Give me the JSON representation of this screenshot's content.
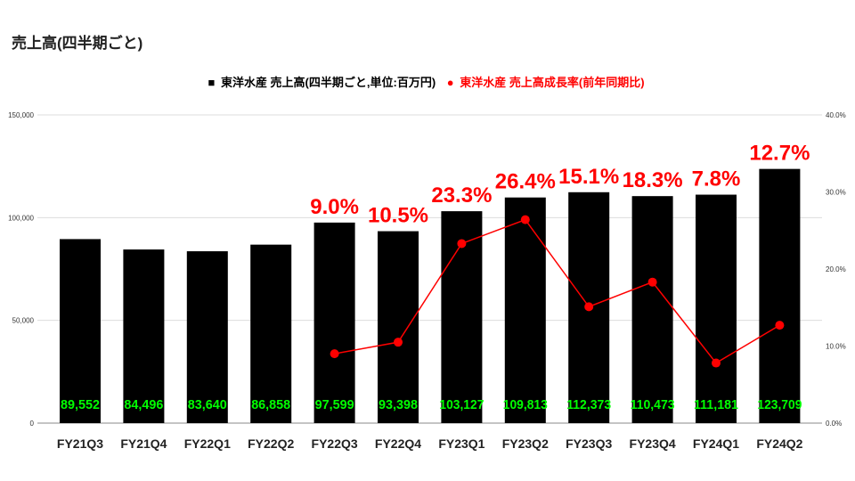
{
  "chart_data": {
    "type": "bar+line",
    "title": "売上高(四半期ごと)",
    "categories": [
      "FY21Q3",
      "FY21Q4",
      "FY22Q1",
      "FY22Q2",
      "FY22Q3",
      "FY22Q4",
      "FY23Q1",
      "FY23Q2",
      "FY23Q3",
      "FY23Q4",
      "FY24Q1",
      "FY24Q2"
    ],
    "series": [
      {
        "name": "東洋水産 売上高(四半期ごと,単位:百万円)",
        "type": "bar",
        "axis": "left",
        "color": "#000000",
        "label_color": "#00ff00",
        "values": [
          89552,
          84496,
          83640,
          86858,
          97599,
          93398,
          103127,
          109813,
          112373,
          110473,
          111181,
          123709
        ],
        "labels": [
          "89,552",
          "84,496",
          "83,640",
          "86,858",
          "97,599",
          "93,398",
          "103,127",
          "109,813",
          "112,373",
          "110,473",
          "111,181",
          "123,709"
        ]
      },
      {
        "name": "東洋水産 売上高成長率(前年同期比)",
        "type": "line",
        "axis": "right",
        "color": "#ff0000",
        "values": [
          null,
          null,
          null,
          null,
          9.0,
          10.5,
          23.3,
          26.4,
          15.1,
          18.3,
          7.8,
          12.7
        ],
        "labels": [
          "",
          "",
          "",
          "",
          "9.0%",
          "10.5%",
          "23.3%",
          "26.4%",
          "15.1%",
          "18.3%",
          "7.8%",
          "12.7%"
        ]
      }
    ],
    "y_left": {
      "range": [
        0,
        150000
      ],
      "ticks": [
        "0",
        "50,000",
        "100,000",
        "150,000"
      ],
      "tick_values": [
        0,
        50000,
        100000,
        150000
      ]
    },
    "y_right": {
      "range": [
        0,
        40
      ],
      "ticks": [
        "0.0%",
        "10.0%",
        "20.0%",
        "30.0%",
        "40.0%"
      ],
      "tick_values": [
        0,
        10,
        20,
        30,
        40
      ]
    },
    "grid": true,
    "legend_placement": "top"
  }
}
